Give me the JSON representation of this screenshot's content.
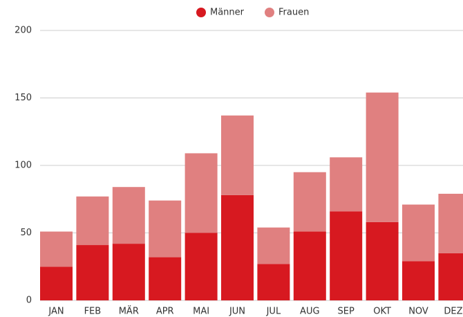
{
  "chart_data": {
    "type": "stacked_bar",
    "categories": [
      "JAN",
      "FEB",
      "MÄR",
      "APR",
      "MAI",
      "JUN",
      "JUL",
      "AUG",
      "SEP",
      "OKT",
      "NOV",
      "DEZ"
    ],
    "series": [
      {
        "name": "Männer",
        "color": "#d71920",
        "values": [
          25,
          41,
          42,
          32,
          50,
          78,
          27,
          51,
          66,
          58,
          29,
          35
        ]
      },
      {
        "name": "Frauen",
        "color": "#e08080",
        "values": [
          26,
          36,
          42,
          42,
          59,
          59,
          27,
          44,
          40,
          96,
          42,
          44
        ]
      }
    ],
    "ylim": [
      0,
      200
    ],
    "yticks": [
      0,
      50,
      100,
      150,
      200
    ],
    "grid": true,
    "legend": "top"
  }
}
